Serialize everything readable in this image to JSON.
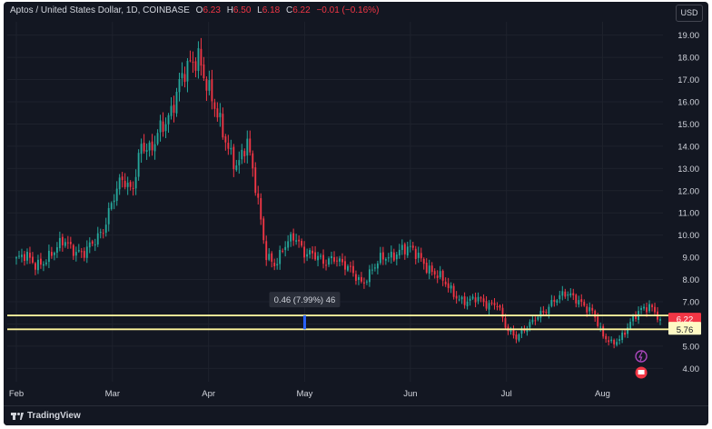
{
  "header": {
    "symbol": "Aptos / United States Dollar, 1D, COINBASE",
    "open_key": "O",
    "open": "6.23",
    "high_key": "H",
    "high": "6.50",
    "low_key": "L",
    "low": "6.18",
    "close_key": "C",
    "close": "6.22",
    "change": "−0.01 (−0.16%)",
    "currency": "USD"
  },
  "footer": {
    "brand": "TradingView"
  },
  "measure_label": "0.46 (7.99%) 46",
  "price_tags": [
    {
      "value": 6.22,
      "text": "6.22",
      "bg": "#f23645",
      "fg": "#ffffff"
    },
    {
      "value": 6.22,
      "text": "6.22",
      "bg": "#fff9c4",
      "fg": "#131722",
      "offset": 1
    },
    {
      "value": 5.76,
      "text": "5.76",
      "bg": "#fff9c4",
      "fg": "#131722"
    }
  ],
  "colors": {
    "up": "#26a69a",
    "down": "#f23645",
    "line": "#fff59d",
    "grid": "#1e222d",
    "text": "#d1d4dc"
  },
  "chart_data": {
    "type": "candlestick",
    "ylim": [
      3.4,
      19.6
    ],
    "yticks": [
      "4.00",
      "5.00",
      "6.00",
      "7.00",
      "8.00",
      "9.00",
      "10.00",
      "11.00",
      "12.00",
      "13.00",
      "14.00",
      "15.00",
      "16.00",
      "17.00",
      "18.00",
      "19.00"
    ],
    "xticks": [
      "Feb",
      "Mar",
      "Apr",
      "May",
      "Jun",
      "Jul",
      "Aug"
    ],
    "horizontal_lines": [
      6.22,
      5.76
    ],
    "close_path": [
      [
        "Feb",
        8.9
      ],
      [
        "",
        9.0
      ],
      [
        "",
        8.7
      ],
      [
        "",
        8.9
      ],
      [
        "",
        9.2
      ],
      [
        "",
        9.8
      ],
      [
        "",
        9.4
      ],
      [
        "",
        9.1
      ],
      [
        "",
        9.6
      ],
      [
        "",
        10.3
      ],
      [
        "Mar",
        11.6
      ],
      [
        "",
        12.4
      ],
      [
        "",
        12.0
      ],
      [
        "",
        14.2
      ],
      [
        "",
        13.6
      ],
      [
        "",
        14.8
      ],
      [
        "",
        15.6
      ],
      [
        "",
        16.8
      ],
      [
        "",
        17.5
      ],
      [
        "",
        18.2
      ],
      [
        "Apr",
        16.6
      ],
      [
        "",
        15.1
      ],
      [
        "",
        14.0
      ],
      [
        "",
        13.2
      ],
      [
        "",
        14.1
      ],
      [
        "",
        11.9
      ],
      [
        "",
        9.2
      ],
      [
        "",
        8.6
      ],
      [
        "",
        9.5
      ],
      [
        "",
        10.1
      ],
      [
        "May",
        9.2
      ],
      [
        "",
        9.0
      ],
      [
        "",
        8.8
      ],
      [
        "",
        9.1
      ],
      [
        "",
        8.6
      ],
      [
        "",
        8.3
      ],
      [
        "",
        7.9
      ],
      [
        "",
        8.4
      ],
      [
        "",
        8.9
      ],
      [
        "",
        9.1
      ],
      [
        "",
        9.4
      ],
      [
        "Jun",
        9.3
      ],
      [
        "",
        9.0
      ],
      [
        "",
        8.5
      ],
      [
        "",
        8.1
      ],
      [
        "",
        7.6
      ],
      [
        "",
        7.2
      ],
      [
        "",
        7.0
      ],
      [
        "",
        7.1
      ],
      [
        "",
        6.9
      ],
      [
        "",
        7.0
      ],
      [
        "Jul",
        5.7
      ],
      [
        "",
        5.4
      ],
      [
        "",
        5.9
      ],
      [
        "",
        6.2
      ],
      [
        "",
        6.5
      ],
      [
        "",
        7.2
      ],
      [
        "",
        7.4
      ],
      [
        "",
        7.1
      ],
      [
        "",
        6.9
      ],
      [
        "",
        6.6
      ],
      [
        "Aug",
        5.4
      ],
      [
        "",
        5.1
      ],
      [
        "",
        5.5
      ],
      [
        "",
        6.1
      ],
      [
        "",
        6.6
      ],
      [
        "",
        6.9
      ],
      [
        "",
        6.22
      ]
    ]
  }
}
